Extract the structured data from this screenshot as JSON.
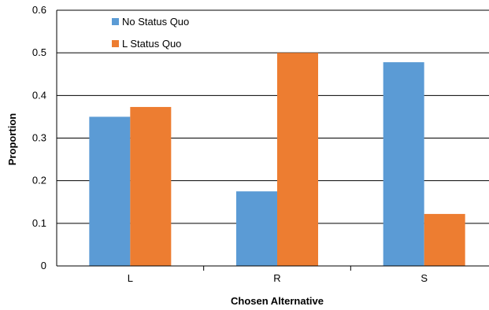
{
  "chart_data": {
    "type": "bar",
    "title": "",
    "xlabel": "Chosen Alternative",
    "ylabel": "Proportion",
    "categories": [
      "L",
      "R",
      "S"
    ],
    "series": [
      {
        "name": "No Status Quo",
        "color": "#5B9BD5",
        "values": [
          0.35,
          0.175,
          0.478
        ]
      },
      {
        "name": "L Status Quo",
        "color": "#ED7D31",
        "values": [
          0.373,
          0.5,
          0.122
        ]
      }
    ],
    "ylim": [
      0,
      0.6
    ],
    "yticks": [
      "0",
      "0.1",
      "0.2",
      "0.3",
      "0.4",
      "0.5",
      "0.6"
    ],
    "grid": true,
    "legend": "top-left"
  }
}
